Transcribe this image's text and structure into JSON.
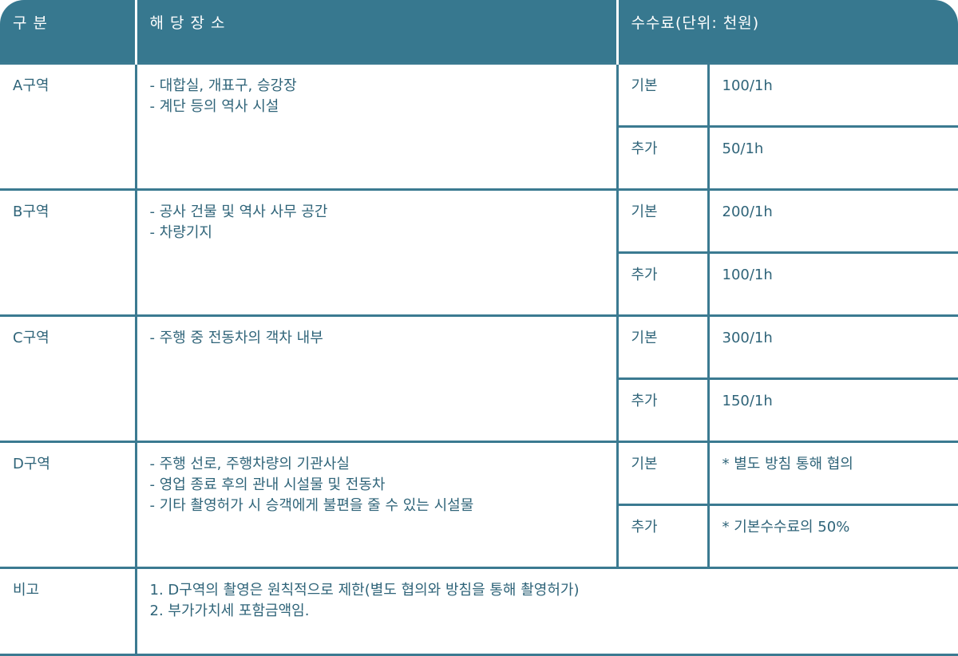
{
  "header": {
    "col1": "구 분",
    "col2": "해 당 장 소",
    "col3": "수수료(단위: 천원)"
  },
  "rows": [
    {
      "zone": "A구역",
      "places": [
        "- 대합실, 개표구, 승강장",
        "- 계단 등의 역사 시설"
      ],
      "basic_label": "기본",
      "basic_fee": "100/1h",
      "extra_label": "추가",
      "extra_fee": "50/1h"
    },
    {
      "zone": "B구역",
      "places": [
        "- 공사 건물 및 역사 사무 공간",
        "- 차량기지"
      ],
      "basic_label": "기본",
      "basic_fee": "200/1h",
      "extra_label": "추가",
      "extra_fee": "100/1h"
    },
    {
      "zone": "C구역",
      "places": [
        "- 주행 중 전동차의 객차 내부"
      ],
      "basic_label": "기본",
      "basic_fee": "300/1h",
      "extra_label": "추가",
      "extra_fee": "150/1h"
    },
    {
      "zone": "D구역",
      "places": [
        "- 주행 선로, 주행차량의 기관사실",
        "- 영업 종료 후의 관내 시설물 및 전동차",
        "- 기타 촬영허가 시 승객에게 불편을 줄 수 있는 시설물"
      ],
      "basic_label": "기본",
      "basic_fee": "* 별도 방침 통해 협의",
      "extra_label": "추가",
      "extra_fee": "* 기본수수료의 50%"
    }
  ],
  "remarks": {
    "label": "비고",
    "lines": [
      "1. D구역의 촬영은 원칙적으로 제한(별도 협의와 방침을 통해 촬영허가)",
      "2. 부가가치세 포함금액임."
    ]
  }
}
